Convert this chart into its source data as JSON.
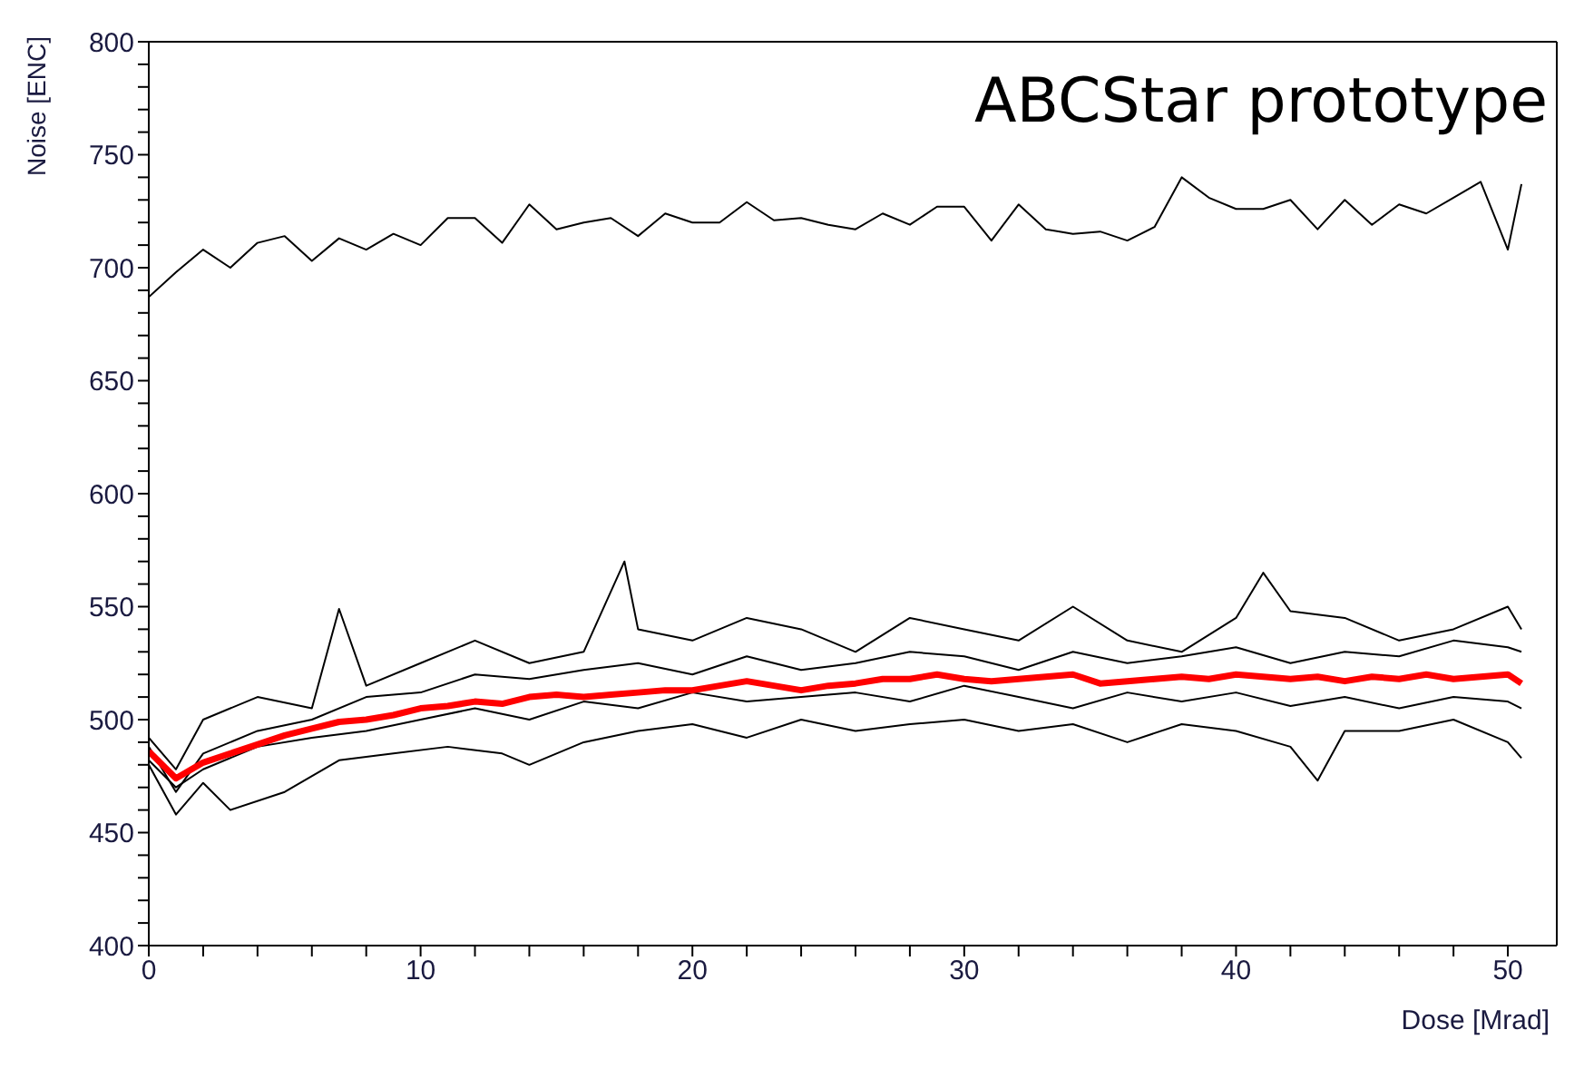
{
  "chart_data": {
    "type": "line",
    "xlabel": "Dose [Mrad]",
    "ylabel": "Noise [ENC]",
    "annotations": [
      "ABCStar prototype"
    ],
    "xlim": [
      0,
      51.8
    ],
    "ylim": [
      400,
      800
    ],
    "xticks": [
      0,
      {
        "value": 2,
        "label": null
      },
      {
        "value": 4,
        "label": null
      },
      {
        "value": 6,
        "label": null
      },
      {
        "value": 8,
        "label": null
      },
      10,
      {
        "value": 12,
        "label": null
      },
      {
        "value": 14,
        "label": null
      },
      {
        "value": 16,
        "label": null
      },
      {
        "value": 18,
        "label": null
      },
      20,
      {
        "value": 22,
        "label": null
      },
      {
        "value": 24,
        "label": null
      },
      {
        "value": 26,
        "label": null
      },
      {
        "value": 28,
        "label": null
      },
      30,
      {
        "value": 32,
        "label": null
      },
      {
        "value": 34,
        "label": null
      },
      {
        "value": 36,
        "label": null
      },
      {
        "value": 38,
        "label": null
      },
      40,
      {
        "value": 42,
        "label": null
      },
      {
        "value": 44,
        "label": null
      },
      {
        "value": 46,
        "label": null
      },
      {
        "value": 48,
        "label": null
      },
      50
    ],
    "yticks": [
      400,
      {
        "value": 410,
        "label": null
      },
      {
        "value": 420,
        "label": null
      },
      {
        "value": 430,
        "label": null
      },
      {
        "value": 440,
        "label": null
      },
      450,
      {
        "value": 460,
        "label": null
      },
      {
        "value": 470,
        "label": null
      },
      {
        "value": 480,
        "label": null
      },
      {
        "value": 490,
        "label": null
      },
      500,
      {
        "value": 510,
        "label": null
      },
      {
        "value": 520,
        "label": null
      },
      {
        "value": 530,
        "label": null
      },
      {
        "value": 540,
        "label": null
      },
      550,
      {
        "value": 560,
        "label": null
      },
      {
        "value": 570,
        "label": null
      },
      {
        "value": 580,
        "label": null
      },
      {
        "value": 590,
        "label": null
      },
      600,
      {
        "value": 610,
        "label": null
      },
      {
        "value": 620,
        "label": null
      },
      {
        "value": 630,
        "label": null
      },
      {
        "value": 640,
        "label": null
      },
      650,
      {
        "value": 660,
        "label": null
      },
      {
        "value": 670,
        "label": null
      },
      {
        "value": 680,
        "label": null
      },
      {
        "value": 690,
        "label": null
      },
      700,
      {
        "value": 710,
        "label": null
      },
      {
        "value": 720,
        "label": null
      },
      {
        "value": 730,
        "label": null
      },
      {
        "value": 740,
        "label": null
      },
      750,
      {
        "value": 760,
        "label": null
      },
      {
        "value": 770,
        "label": null
      },
      {
        "value": 780,
        "label": null
      },
      {
        "value": 790,
        "label": null
      },
      800
    ],
    "marker": "none",
    "line_style": "solid",
    "series": [
      {
        "color": "#000000",
        "x": [
          0,
          1,
          2,
          3,
          4,
          5,
          6,
          7,
          8,
          9,
          10,
          11,
          12,
          13,
          14,
          15,
          16,
          17,
          18,
          19,
          20,
          21,
          22,
          23,
          24,
          25,
          26,
          27,
          28,
          29,
          30,
          31,
          32,
          33,
          34,
          35,
          36,
          37,
          38,
          39,
          40,
          41,
          42,
          43,
          44,
          45,
          46,
          47,
          48,
          49,
          50,
          50.5
        ],
        "values": [
          687,
          698,
          708,
          700,
          711,
          714,
          703,
          713,
          708,
          715,
          710,
          722,
          722,
          711,
          728,
          717,
          720,
          722,
          714,
          724,
          720,
          720,
          729,
          721,
          722,
          719,
          717,
          724,
          719,
          727,
          727,
          712,
          728,
          717,
          715,
          716,
          712,
          718,
          740,
          731,
          726,
          726,
          730,
          717,
          730,
          719,
          728,
          724,
          731,
          738,
          708,
          737
        ]
      },
      {
        "color": "#000000",
        "x": [
          0,
          1,
          2,
          4,
          6,
          7,
          8,
          10,
          12,
          14,
          16,
          17.5,
          18,
          20,
          22,
          24,
          26,
          28,
          30,
          32,
          34,
          36,
          38,
          40,
          41,
          42,
          44,
          46,
          48,
          50,
          50.5
        ],
        "values": [
          492,
          478,
          500,
          510,
          505,
          549,
          515,
          525,
          535,
          525,
          530,
          570,
          540,
          535,
          545,
          540,
          530,
          545,
          540,
          535,
          550,
          535,
          530,
          545,
          565,
          548,
          545,
          535,
          540,
          550,
          540
        ]
      },
      {
        "color": "#000000",
        "x": [
          0,
          1,
          2,
          4,
          6,
          8,
          10,
          12,
          14,
          16,
          18,
          20,
          22,
          24,
          26,
          28,
          30,
          32,
          34,
          36,
          38,
          40,
          42,
          44,
          46,
          48,
          50,
          50.5
        ],
        "values": [
          488,
          468,
          485,
          495,
          500,
          510,
          512,
          520,
          518,
          522,
          525,
          520,
          528,
          522,
          525,
          530,
          528,
          522,
          530,
          525,
          528,
          532,
          525,
          530,
          528,
          535,
          532,
          530
        ]
      },
      {
        "color": "#000000",
        "x": [
          0,
          1,
          2,
          4,
          6,
          8,
          10,
          12,
          14,
          16,
          18,
          20,
          22,
          24,
          26,
          28,
          30,
          32,
          34,
          36,
          38,
          40,
          42,
          44,
          46,
          48,
          50,
          50.5
        ],
        "values": [
          482,
          470,
          478,
          488,
          492,
          495,
          500,
          505,
          500,
          508,
          505,
          512,
          508,
          510,
          512,
          508,
          515,
          510,
          505,
          512,
          508,
          512,
          506,
          510,
          505,
          510,
          508,
          505
        ]
      },
      {
        "color": "#000000",
        "x": [
          0,
          1,
          2,
          3,
          5,
          7,
          9,
          11,
          13,
          14,
          16,
          18,
          20,
          22,
          24,
          26,
          28,
          30,
          32,
          34,
          36,
          38,
          40,
          42,
          43,
          44,
          46,
          48,
          50,
          50.5
        ],
        "values": [
          480,
          458,
          472,
          460,
          468,
          482,
          485,
          488,
          485,
          480,
          490,
          495,
          498,
          492,
          500,
          495,
          498,
          500,
          495,
          498,
          490,
          498,
          495,
          488,
          473,
          495,
          495,
          500,
          490,
          483
        ]
      },
      {
        "color": "#ff0000",
        "x": [
          0,
          1,
          2,
          3,
          4,
          5,
          6,
          7,
          8,
          9,
          10,
          11,
          12,
          13,
          14,
          15,
          16,
          17,
          18,
          19,
          20,
          21,
          22,
          23,
          24,
          25,
          26,
          27,
          28,
          29,
          30,
          31,
          32,
          33,
          34,
          35,
          36,
          37,
          38,
          39,
          40,
          41,
          42,
          43,
          44,
          45,
          46,
          47,
          48,
          49,
          50,
          50.5
        ],
        "values": [
          486,
          474,
          481,
          485,
          489,
          493,
          496,
          499,
          500,
          502,
          505,
          506,
          508,
          507,
          510,
          511,
          510,
          511,
          512,
          513,
          513,
          515,
          517,
          515,
          513,
          515,
          516,
          518,
          518,
          520,
          518,
          517,
          518,
          519,
          520,
          516,
          517,
          518,
          519,
          518,
          520,
          519,
          518,
          519,
          517,
          519,
          518,
          520,
          518,
          519,
          520,
          516
        ]
      }
    ]
  }
}
